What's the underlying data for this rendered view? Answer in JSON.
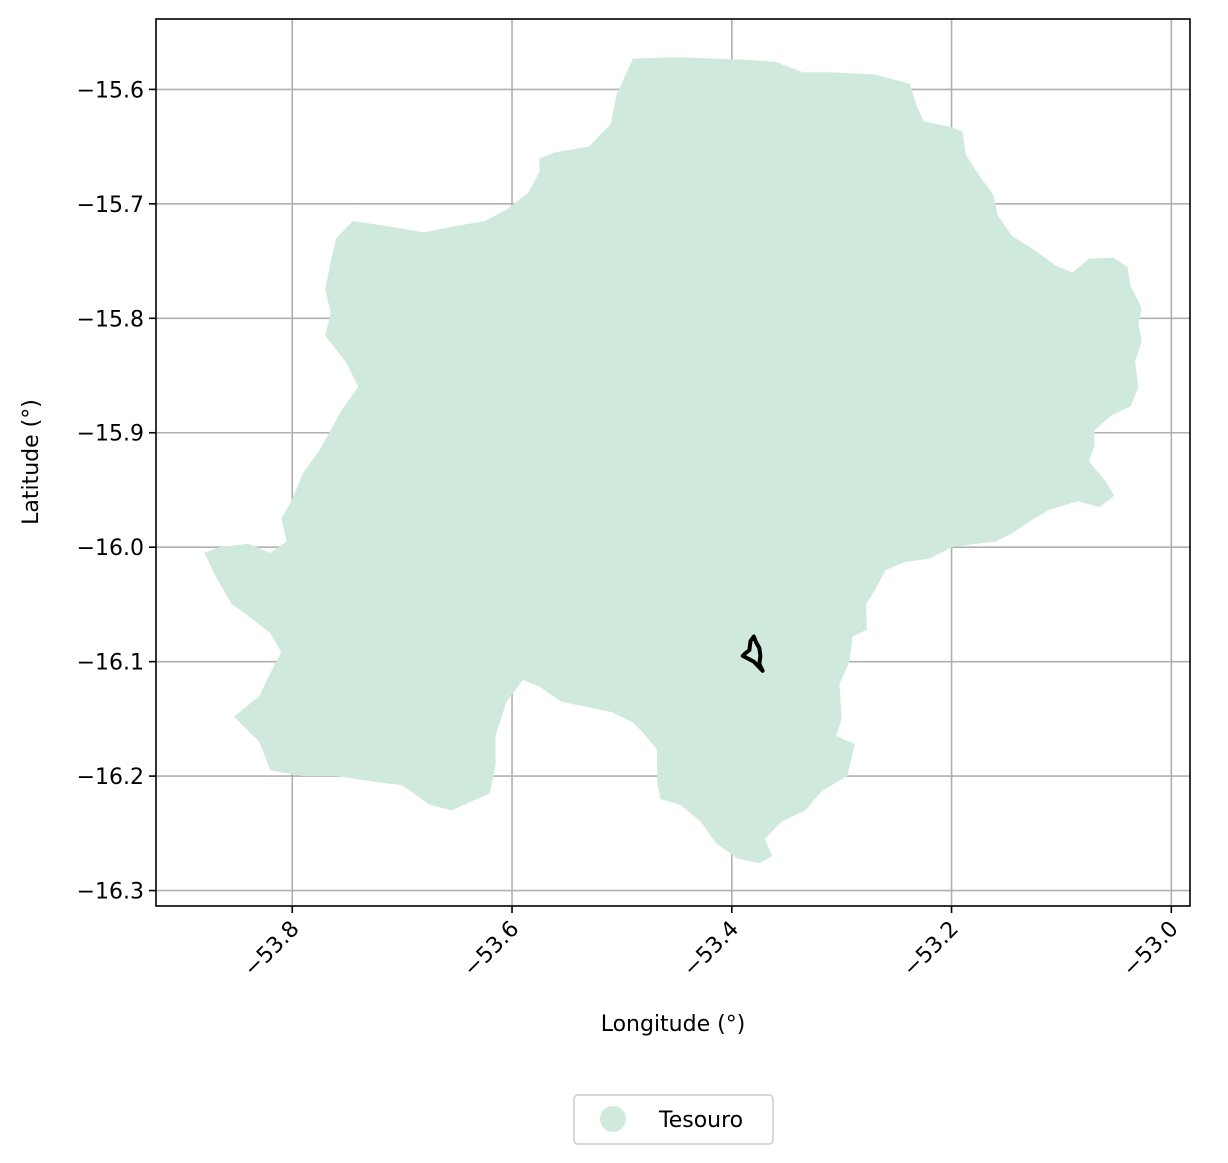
{
  "chart_data": {
    "type": "map",
    "xlabel": "Longitude (°)",
    "ylabel": "Latitude (°)",
    "xlim": [
      -53.924,
      -52.983
    ],
    "ylim": [
      -16.3135,
      -15.5385
    ],
    "xticks": [
      -53.8,
      -53.6,
      -53.4,
      -53.2,
      -53.0
    ],
    "xtick_labels": [
      "−53.8",
      "−53.6",
      "−53.4",
      "−53.2",
      "−53.0"
    ],
    "yticks": [
      -15.6,
      -15.7,
      -15.8,
      -15.9,
      -16.0,
      -16.1,
      -16.2,
      -16.3
    ],
    "ytick_labels": [
      "−15.6",
      "−15.7",
      "−15.8",
      "−15.9",
      "−16.0",
      "−16.1",
      "−16.2",
      "−16.3"
    ],
    "grid": true,
    "legend": {
      "placement": "bottom-center",
      "entries": [
        {
          "label": "Tesouro",
          "color": "#cfeadd"
        }
      ]
    },
    "region": {
      "name": "Tesouro",
      "fill": "#cfeadd",
      "outline": [
        [
          -53.49,
          -15.573
        ],
        [
          -53.45,
          -15.572
        ],
        [
          -53.39,
          -15.574
        ],
        [
          -53.36,
          -15.576
        ],
        [
          -53.335,
          -15.585
        ],
        [
          -53.31,
          -15.585
        ],
        [
          -53.27,
          -15.587
        ],
        [
          -53.238,
          -15.595
        ],
        [
          -53.232,
          -15.614
        ],
        [
          -53.225,
          -15.628
        ],
        [
          -53.2,
          -15.633
        ],
        [
          -53.19,
          -15.637
        ],
        [
          -53.187,
          -15.657
        ],
        [
          -53.175,
          -15.675
        ],
        [
          -53.162,
          -15.692
        ],
        [
          -53.158,
          -15.71
        ],
        [
          -53.145,
          -15.728
        ],
        [
          -53.125,
          -15.74
        ],
        [
          -53.105,
          -15.754
        ],
        [
          -53.09,
          -15.76
        ],
        [
          -53.075,
          -15.748
        ],
        [
          -53.053,
          -15.747
        ],
        [
          -53.04,
          -15.755
        ],
        [
          -53.037,
          -15.772
        ],
        [
          -53.03,
          -15.785
        ],
        [
          -53.027,
          -15.792
        ],
        [
          -53.03,
          -15.805
        ],
        [
          -53.027,
          -15.82
        ],
        [
          -53.033,
          -15.838
        ],
        [
          -53.03,
          -15.86
        ],
        [
          -53.037,
          -15.877
        ],
        [
          -53.055,
          -15.885
        ],
        [
          -53.07,
          -15.898
        ],
        [
          -53.07,
          -15.912
        ],
        [
          -53.075,
          -15.925
        ],
        [
          -53.06,
          -15.942
        ],
        [
          -53.052,
          -15.955
        ],
        [
          -53.065,
          -15.965
        ],
        [
          -53.085,
          -15.96
        ],
        [
          -53.11,
          -15.967
        ],
        [
          -53.13,
          -15.978
        ],
        [
          -53.145,
          -15.988
        ],
        [
          -53.16,
          -15.995
        ],
        [
          -53.185,
          -15.998
        ],
        [
          -53.2,
          -16.0
        ],
        [
          -53.22,
          -16.01
        ],
        [
          -53.243,
          -16.013
        ],
        [
          -53.26,
          -16.02
        ],
        [
          -53.27,
          -16.038
        ],
        [
          -53.278,
          -16.05
        ],
        [
          -53.277,
          -16.072
        ],
        [
          -53.29,
          -16.078
        ],
        [
          -53.293,
          -16.1
        ],
        [
          -53.302,
          -16.12
        ],
        [
          -53.3,
          -16.15
        ],
        [
          -53.305,
          -16.165
        ],
        [
          -53.288,
          -16.172
        ],
        [
          -53.295,
          -16.2
        ],
        [
          -53.318,
          -16.213
        ],
        [
          -53.333,
          -16.23
        ],
        [
          -53.355,
          -16.24
        ],
        [
          -53.37,
          -16.255
        ],
        [
          -53.363,
          -16.27
        ],
        [
          -53.375,
          -16.276
        ],
        [
          -53.395,
          -16.272
        ],
        [
          -53.415,
          -16.258
        ],
        [
          -53.428,
          -16.24
        ],
        [
          -53.447,
          -16.225
        ],
        [
          -53.465,
          -16.22
        ],
        [
          -53.468,
          -16.205
        ],
        [
          -53.468,
          -16.177
        ],
        [
          -53.48,
          -16.163
        ],
        [
          -53.49,
          -16.153
        ],
        [
          -53.51,
          -16.144
        ],
        [
          -53.53,
          -16.14
        ],
        [
          -53.555,
          -16.135
        ],
        [
          -53.575,
          -16.122
        ],
        [
          -53.59,
          -16.116
        ],
        [
          -53.605,
          -16.135
        ],
        [
          -53.615,
          -16.165
        ],
        [
          -53.615,
          -16.19
        ],
        [
          -53.62,
          -16.215
        ],
        [
          -53.655,
          -16.23
        ],
        [
          -53.675,
          -16.225
        ],
        [
          -53.7,
          -16.208
        ],
        [
          -53.725,
          -16.205
        ],
        [
          -53.76,
          -16.2
        ],
        [
          -53.79,
          -16.2
        ],
        [
          -53.82,
          -16.195
        ],
        [
          -53.83,
          -16.17
        ],
        [
          -53.853,
          -16.148
        ],
        [
          -53.83,
          -16.13
        ],
        [
          -53.82,
          -16.11
        ],
        [
          -53.81,
          -16.092
        ],
        [
          -53.82,
          -16.075
        ],
        [
          -53.84,
          -16.06
        ],
        [
          -53.855,
          -16.05
        ],
        [
          -53.87,
          -16.025
        ],
        [
          -53.88,
          -16.005
        ],
        [
          -53.867,
          -16.0
        ],
        [
          -53.84,
          -15.997
        ],
        [
          -53.82,
          -16.005
        ],
        [
          -53.805,
          -15.995
        ],
        [
          -53.81,
          -15.975
        ],
        [
          -53.8,
          -15.958
        ],
        [
          -53.79,
          -15.935
        ],
        [
          -53.775,
          -15.915
        ],
        [
          -53.755,
          -15.88
        ],
        [
          -53.74,
          -15.86
        ],
        [
          -53.75,
          -15.84
        ],
        [
          -53.77,
          -15.815
        ],
        [
          -53.765,
          -15.795
        ],
        [
          -53.77,
          -15.775
        ],
        [
          -53.765,
          -15.75
        ],
        [
          -53.76,
          -15.73
        ],
        [
          -53.745,
          -15.715
        ],
        [
          -53.71,
          -15.72
        ],
        [
          -53.68,
          -15.725
        ],
        [
          -53.655,
          -15.72
        ],
        [
          -53.625,
          -15.715
        ],
        [
          -53.605,
          -15.705
        ],
        [
          -53.585,
          -15.69
        ],
        [
          -53.575,
          -15.672
        ],
        [
          -53.575,
          -15.66
        ],
        [
          -53.56,
          -15.655
        ],
        [
          -53.53,
          -15.65
        ],
        [
          -53.51,
          -15.63
        ],
        [
          -53.505,
          -15.605
        ],
        [
          -53.49,
          -15.573
        ]
      ]
    },
    "feature": {
      "name": "",
      "stroke": "#000000",
      "outline": [
        [
          -53.38,
          -16.078
        ],
        [
          -53.383,
          -16.082
        ],
        [
          -53.384,
          -16.09
        ],
        [
          -53.388,
          -16.093
        ],
        [
          -53.39,
          -16.095
        ],
        [
          -53.38,
          -16.1
        ],
        [
          -53.372,
          -16.108
        ],
        [
          -53.375,
          -16.102
        ],
        [
          -53.374,
          -16.095
        ],
        [
          -53.375,
          -16.088
        ],
        [
          -53.378,
          -16.083
        ],
        [
          -53.38,
          -16.078
        ]
      ]
    }
  }
}
